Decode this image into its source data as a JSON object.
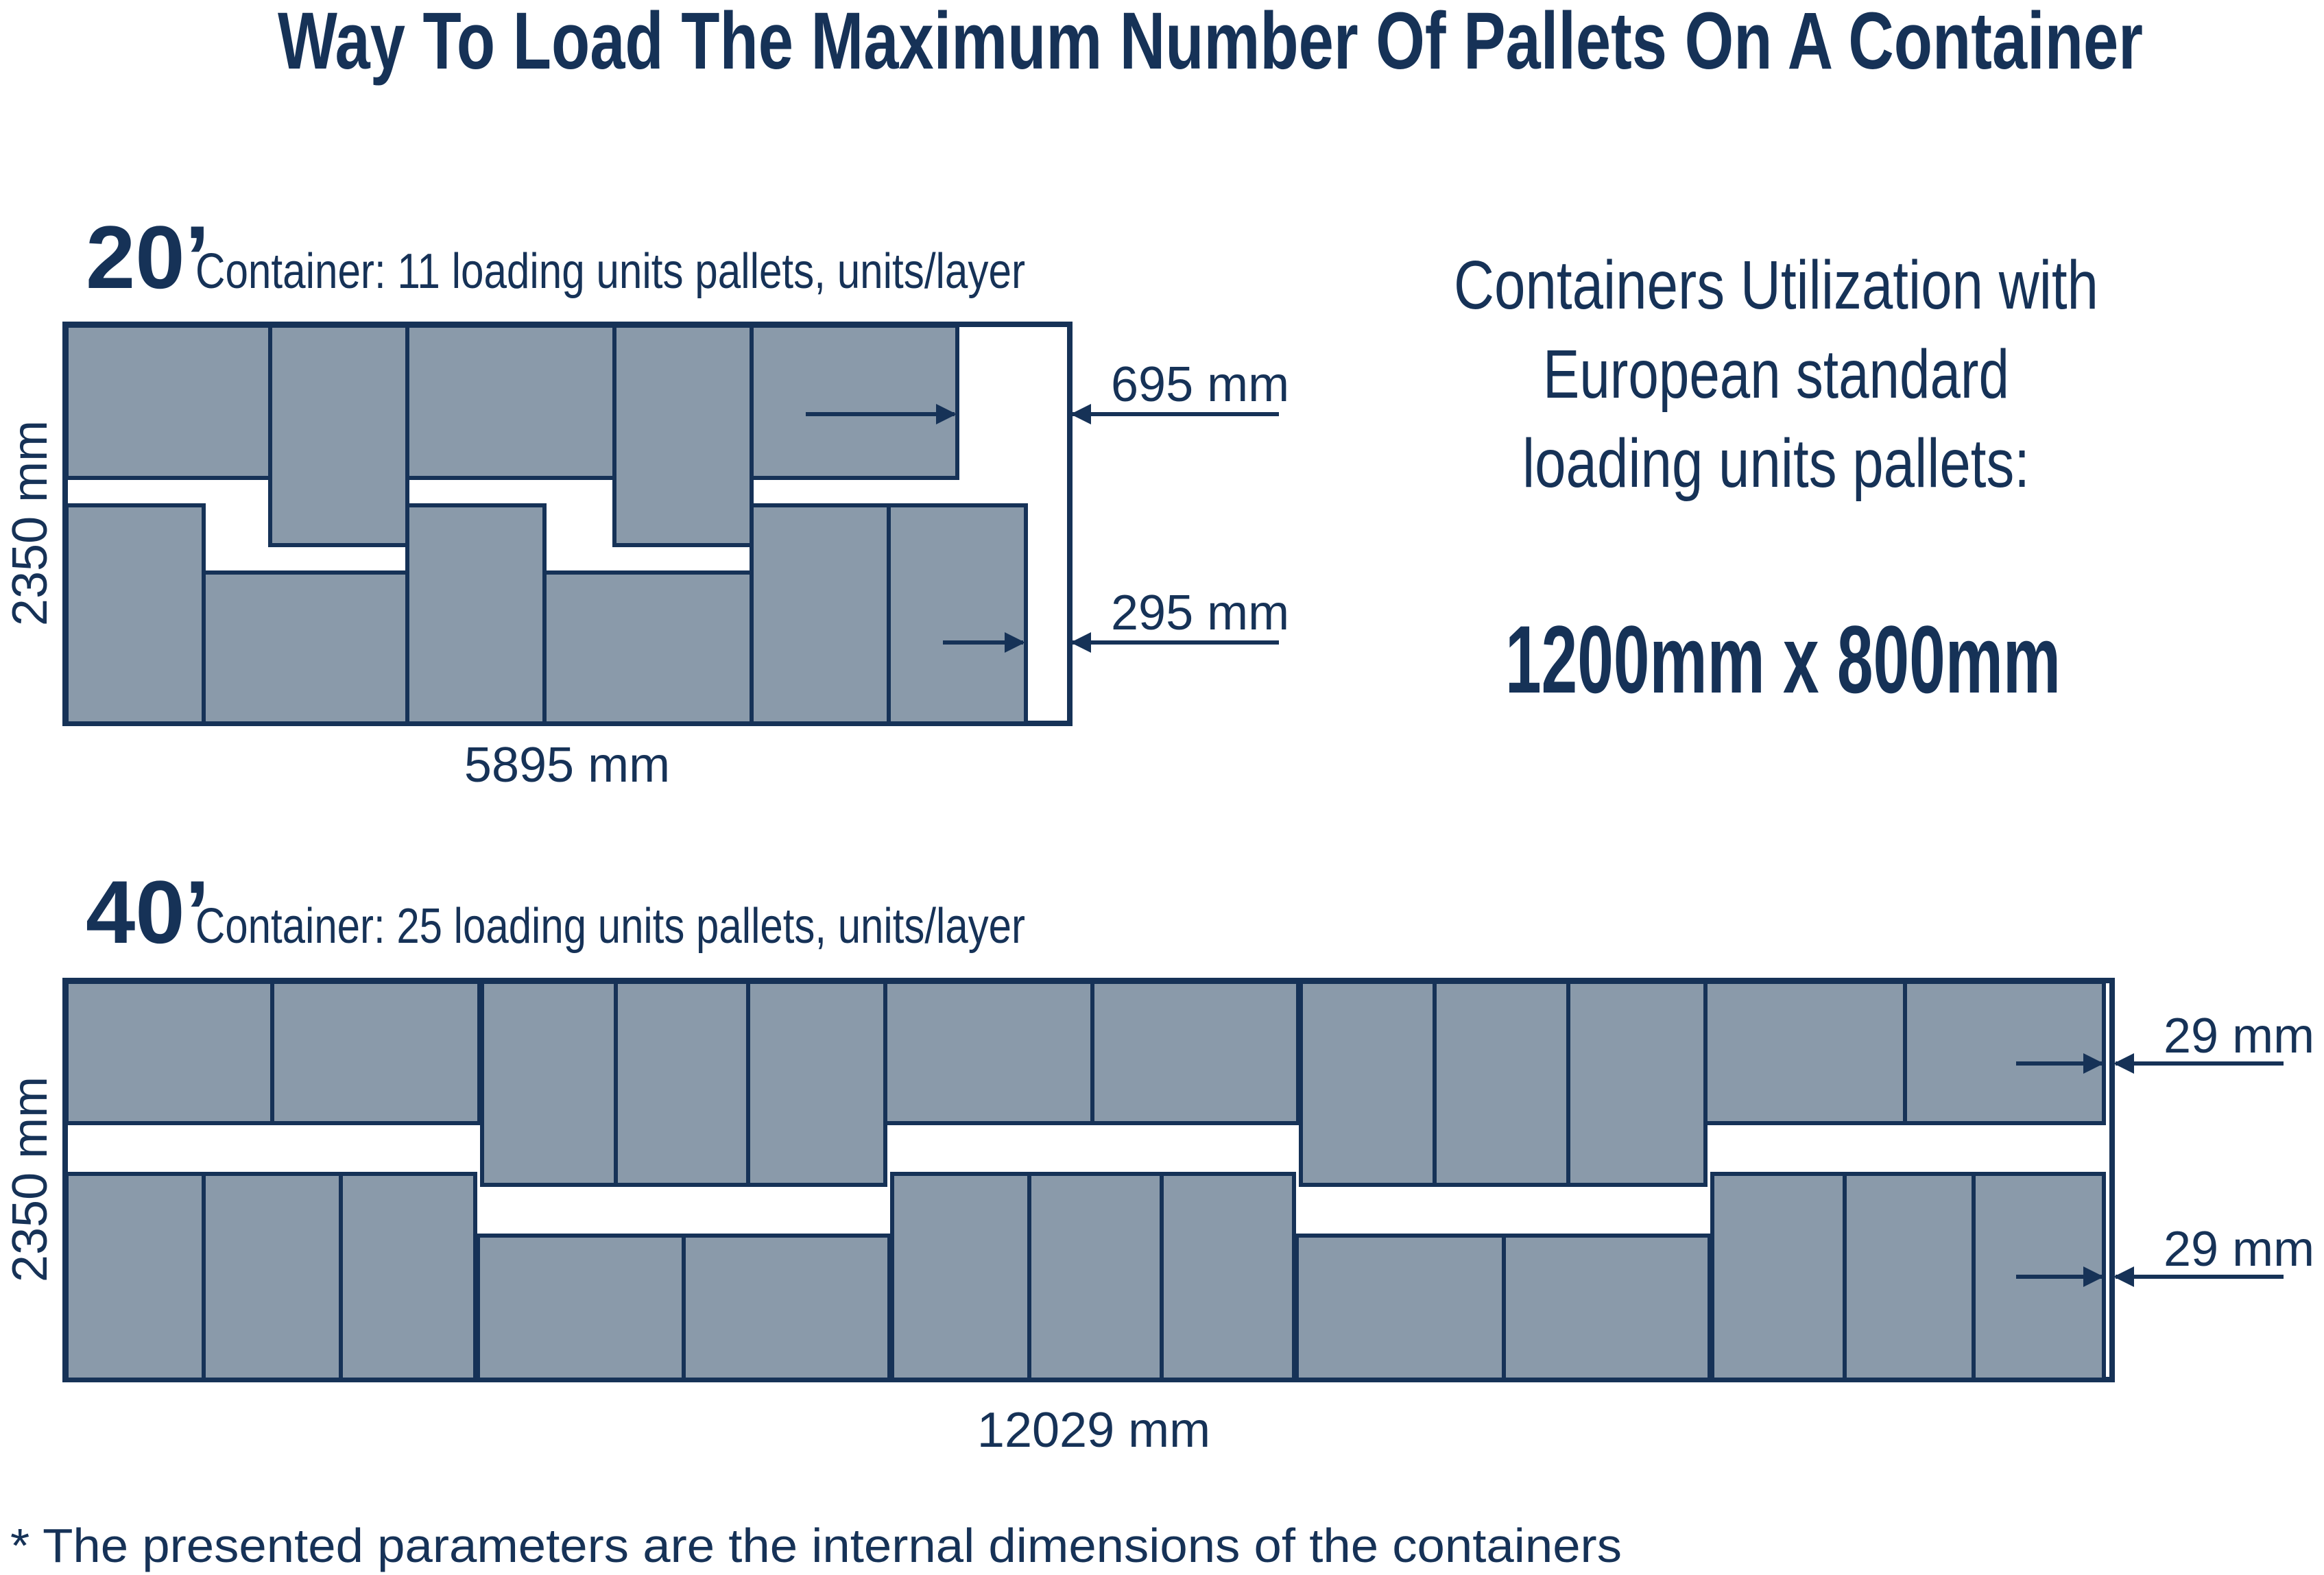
{
  "title": "Way To Load The Maximum Number Of Pallets On A Container",
  "colors": {
    "ink": "#163257",
    "pallet_fill": "#8a9aaa",
    "pallet_stroke": "#163257",
    "background": "#ffffff"
  },
  "container20": {
    "size_label": "20’",
    "caption": "Container: 11 loading units pallets, units/layer",
    "height_label": "2350 mm",
    "length_label": "5895 mm",
    "gap_top_label": "695 mm",
    "gap_bottom_label": "295 mm",
    "pallet_count": 11
  },
  "container40": {
    "size_label": "40’",
    "caption": "Container: 25 loading units pallets, units/layer",
    "height_label": "2350 mm",
    "length_label": "12029 mm",
    "gap_top_label": "29 mm",
    "gap_bottom_label": "29 mm",
    "pallet_count": 25
  },
  "info": {
    "line1": "Containers Utilization with",
    "line2": "European standard",
    "line3": "loading units pallets:",
    "pallet_size": "1200mm x 800mm"
  },
  "footnote": "* The presented parameters are the internal dimensions of the containers"
}
